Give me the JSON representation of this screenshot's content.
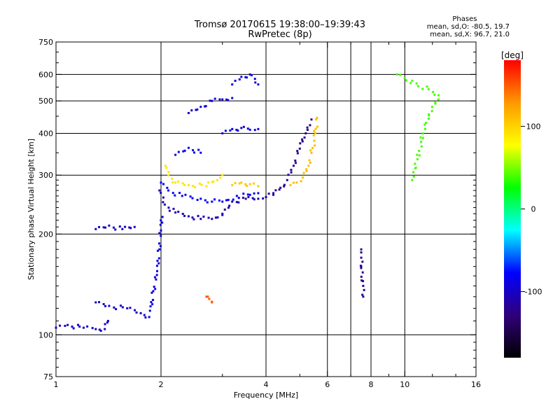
{
  "chart_data": {
    "type": "scatter",
    "title": "Tromsø 20170615 19:38:00–19:39:43",
    "subtitle": "RwPretec (8p)",
    "xlabel": "Frequency [MHz]",
    "ylabel": "Stationary phase Virtual Height [km]",
    "xscale": "log",
    "yscale": "log",
    "xlim": [
      1,
      16
    ],
    "ylim": [
      75,
      750
    ],
    "xticks": [
      1,
      2,
      4,
      6,
      8,
      10,
      16
    ],
    "xtick_labels": [
      "1",
      "2",
      "4",
      "6",
      "8",
      "10",
      "16"
    ],
    "xgrid": [
      2,
      4,
      6,
      7,
      8,
      10
    ],
    "yticks": [
      75,
      100,
      200,
      300,
      400,
      500,
      600,
      750
    ],
    "ytick_labels": [
      "75",
      "100",
      "200",
      "300",
      "400",
      "500",
      "600",
      "750"
    ],
    "ygrid": [
      100,
      200,
      300,
      400,
      500,
      600
    ],
    "grid": true,
    "legend": {
      "title": "Phases",
      "line1": "mean, sd,O: -80.5, 19.7",
      "line2": "mean, sd,X:  96.7, 21.0",
      "placement": "top-right"
    },
    "colorbar": {
      "label": "[deg]",
      "range": [
        -180,
        180
      ],
      "ticks": [
        100,
        0,
        -100
      ],
      "tick_labels": [
        "100",
        "0",
        "-100"
      ],
      "colors": [
        "#ff0000",
        "#ff9900",
        "#ffff00",
        "#00ff00",
        "#00ffff",
        "#0000ff",
        "#30007a",
        "#000000"
      ]
    },
    "segments": [
      {
        "x": [
          1.0,
          1.08,
          1.2,
          1.3,
          1.38,
          1.41
        ],
        "y": [
          105,
          107,
          105,
          104,
          104,
          110
        ],
        "phase": -100
      },
      {
        "x": [
          1.3,
          1.42,
          1.6,
          1.75,
          1.85
        ],
        "y": [
          125,
          122,
          120,
          116,
          113
        ],
        "phase": -95
      },
      {
        "x": [
          1.86,
          1.9,
          1.95,
          1.98,
          2.0,
          2.02
        ],
        "y": [
          118,
          135,
          155,
          180,
          205,
          225
        ],
        "phase": -90
      },
      {
        "x": [
          1.3,
          1.42,
          1.55,
          1.68
        ],
        "y": [
          207,
          212,
          207,
          210
        ],
        "phase": -100
      },
      {
        "x": [
          1.98,
          2.05,
          2.2,
          2.4,
          2.6,
          2.8,
          3.0
        ],
        "y": [
          270,
          245,
          232,
          226,
          222,
          222,
          228
        ],
        "phase": -105
      },
      {
        "x": [
          3.0,
          3.2,
          3.5,
          3.8,
          4.0,
          4.2
        ],
        "y": [
          230,
          250,
          255,
          255,
          258,
          262
        ],
        "phase": -110
      },
      {
        "x": [
          4.2,
          4.4,
          4.6,
          4.8,
          5.0,
          5.2,
          5.4
        ],
        "y": [
          265,
          275,
          290,
          320,
          360,
          400,
          440
        ],
        "phase": -120
      },
      {
        "x": [
          4.7,
          4.9,
          5.1,
          5.3,
          5.5,
          5.6
        ],
        "y": [
          280,
          285,
          295,
          320,
          380,
          445
        ],
        "phase": 110
      },
      {
        "x": [
          3.2,
          3.4,
          3.6,
          3.8
        ],
        "y": [
          280,
          285,
          282,
          278
        ],
        "phase": 105
      },
      {
        "x": [
          2.0,
          2.1,
          2.3,
          2.6,
          2.8,
          3.0,
          3.3,
          3.6,
          3.8
        ],
        "y": [
          285,
          270,
          260,
          255,
          250,
          250,
          260,
          262,
          265
        ],
        "phase": -80
      },
      {
        "x": [
          2.2,
          2.4,
          2.6
        ],
        "y": [
          345,
          362,
          350
        ],
        "phase": -85
      },
      {
        "x": [
          3.0,
          3.2,
          3.4,
          3.6,
          3.8
        ],
        "y": [
          400,
          412,
          415,
          410,
          412
        ],
        "phase": -90
      },
      {
        "x": [
          2.4,
          2.6,
          2.8,
          3.0,
          3.2
        ],
        "y": [
          460,
          480,
          500,
          505,
          510
        ],
        "phase": -95
      },
      {
        "x": [
          3.2,
          3.4,
          3.6,
          3.8
        ],
        "y": [
          560,
          590,
          600,
          560
        ],
        "phase": -90
      },
      {
        "x": [
          2.06,
          2.1,
          2.2,
          2.4,
          2.7,
          2.9,
          3.0
        ],
        "y": [
          320,
          300,
          285,
          280,
          278,
          290,
          300
        ],
        "phase": 90
      },
      {
        "x": [
          2.7,
          2.75,
          2.8
        ],
        "y": [
          130,
          128,
          125
        ],
        "phase": 150
      },
      {
        "x": [
          7.5,
          7.5,
          7.5,
          7.6,
          7.6
        ],
        "y": [
          180,
          170,
          160,
          140,
          130
        ],
        "phase": -120
      },
      {
        "x": [
          9.5,
          12.5,
          11.5,
          10.5
        ],
        "y": [
          600,
          520,
          430,
          290
        ],
        "phase": 40
      }
    ]
  }
}
